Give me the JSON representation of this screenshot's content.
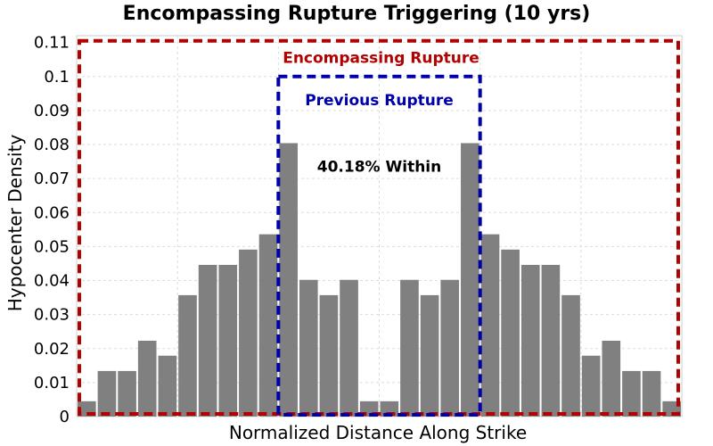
{
  "chart_data": {
    "type": "bar",
    "title": "Encompassing Rupture Triggering (10 yrs)",
    "xlabel": "Normalized Distance Along Strike",
    "ylabel": "Hypocenter Density",
    "ylim": [
      0,
      0.112
    ],
    "yticks": [
      "0",
      "0.01",
      "0.02",
      "0.03",
      "0.04",
      "0.05",
      "0.06",
      "0.07",
      "0.08",
      "0.09",
      "0.1",
      "0.11"
    ],
    "grid": true,
    "bar_color": "#808080",
    "categories": [
      "1",
      "2",
      "3",
      "4",
      "5",
      "6",
      "7",
      "8",
      "9",
      "10",
      "11",
      "12",
      "13",
      "14",
      "15",
      "16",
      "17",
      "18",
      "19",
      "20",
      "21",
      "22",
      "23",
      "24",
      "25",
      "26",
      "27",
      "28",
      "29",
      "30"
    ],
    "values": [
      0.0045,
      0.0134,
      0.0134,
      0.0223,
      0.0179,
      0.0357,
      0.0446,
      0.0446,
      0.0491,
      0.0536,
      0.0804,
      0.0402,
      0.0357,
      0.0402,
      0.0045,
      0.0045,
      0.0402,
      0.0357,
      0.0402,
      0.0804,
      0.0536,
      0.0491,
      0.0446,
      0.0446,
      0.0357,
      0.0179,
      0.0223,
      0.0134,
      0.0134,
      0.0045
    ],
    "annotations": {
      "encompassing": {
        "label": "Encompassing Rupture",
        "color": "#b30000",
        "x_range": [
          0,
          30
        ],
        "y_top": 0.1105
      },
      "previous": {
        "label": "Previous Rupture",
        "color": "#0000a8",
        "x_range": [
          10,
          20
        ],
        "y_top": 0.1
      },
      "within_text": "40.18% Within"
    }
  }
}
